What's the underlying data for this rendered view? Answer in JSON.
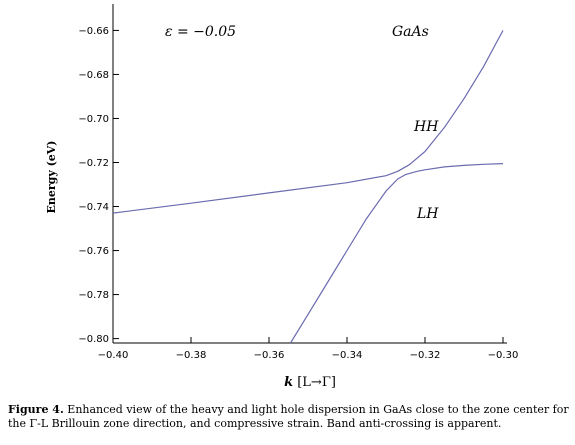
{
  "chart_data": {
    "type": "line",
    "xlabel": "k [L→Γ]",
    "ylabel": "Energy (eV)",
    "xlim": [
      -0.4,
      -0.3
    ],
    "ylim": [
      -0.802,
      -0.648
    ],
    "x_ticks": [
      -0.4,
      -0.38,
      -0.36,
      -0.34,
      -0.32,
      -0.3
    ],
    "x_tick_labels": [
      "−0.40",
      "−0.38",
      "−0.36",
      "−0.34",
      "−0.32",
      "−0.30"
    ],
    "y_ticks": [
      -0.66,
      -0.68,
      -0.7,
      -0.72,
      -0.74,
      -0.76,
      -0.78,
      -0.8
    ],
    "y_tick_labels": [
      "−0.66",
      "−0.68",
      "−0.70",
      "−0.72",
      "−0.74",
      "−0.76",
      "−0.78",
      "−0.80"
    ],
    "grid": false,
    "line_color": "#6b6bb0",
    "annotations": {
      "strain": "ε = −0.05",
      "material": "GaAs",
      "hh": "HH",
      "lh": "LH"
    },
    "series": [
      {
        "name": "HH",
        "x": [
          -0.4,
          -0.38,
          -0.36,
          -0.34,
          -0.33,
          -0.327,
          -0.324,
          -0.32,
          -0.315,
          -0.31,
          -0.305,
          -0.3
        ],
        "y": [
          -0.743,
          -0.7385,
          -0.7338,
          -0.7292,
          -0.726,
          -0.724,
          -0.721,
          -0.715,
          -0.704,
          -0.691,
          -0.6765,
          -0.66
        ]
      },
      {
        "name": "LH",
        "x": [
          -0.3545,
          -0.35,
          -0.345,
          -0.34,
          -0.335,
          -0.33,
          -0.327,
          -0.325,
          -0.322,
          -0.32,
          -0.315,
          -0.31,
          -0.305,
          -0.3
        ],
        "y": [
          -0.802,
          -0.789,
          -0.7745,
          -0.76,
          -0.7455,
          -0.733,
          -0.7275,
          -0.7255,
          -0.724,
          -0.7233,
          -0.722,
          -0.7213,
          -0.7208,
          -0.7205
        ]
      }
    ]
  },
  "caption": {
    "label": "Figure 4.",
    "text": " Enhanced view of the heavy and light hole dispersion in GaAs close  to the zone center for the Γ-L Brillouin zone direction, and compressive strain. Band anti-crossing is apparent."
  }
}
